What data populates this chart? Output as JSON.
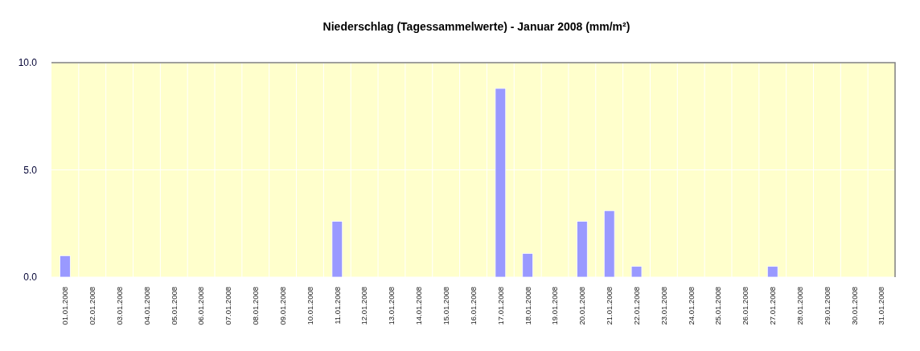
{
  "chart_data": {
    "type": "bar",
    "title": "Niederschlag (Tagessammelwerte) - Januar 2008 (mm/m²)",
    "categories": [
      "01.01.2008",
      "02.01.2008",
      "03.01.2008",
      "04.01.2008",
      "05.01.2008",
      "06.01.2008",
      "07.01.2008",
      "08.01.2008",
      "09.01.2008",
      "10.01.2008",
      "11.01.2008",
      "12.01.2008",
      "13.01.2008",
      "14.01.2008",
      "15.01.2008",
      "16.01.2008",
      "17.01.2008",
      "18.01.2008",
      "19.01.2008",
      "20.01.2008",
      "21.01.2008",
      "22.01.2008",
      "23.01.2008",
      "24.01.2008",
      "25.01.2008",
      "26.01.2008",
      "27.01.2008",
      "28.01.2008",
      "29.01.2008",
      "30.01.2008",
      "31.01.2008"
    ],
    "values": [
      1.0,
      0,
      0,
      0,
      0,
      0,
      0,
      0,
      0,
      0,
      2.6,
      0,
      0,
      0,
      0,
      0,
      8.8,
      1.1,
      0,
      2.6,
      3.1,
      0.5,
      0,
      0,
      0,
      0,
      0.5,
      0,
      0,
      0,
      0
    ],
    "color": "#9999ff",
    "ylim": [
      0,
      10
    ],
    "yticks": [
      {
        "value": 0,
        "label": "0.0"
      },
      {
        "value": 5,
        "label": "5.0"
      },
      {
        "value": 10,
        "label": "10.0"
      }
    ],
    "grid": true
  }
}
